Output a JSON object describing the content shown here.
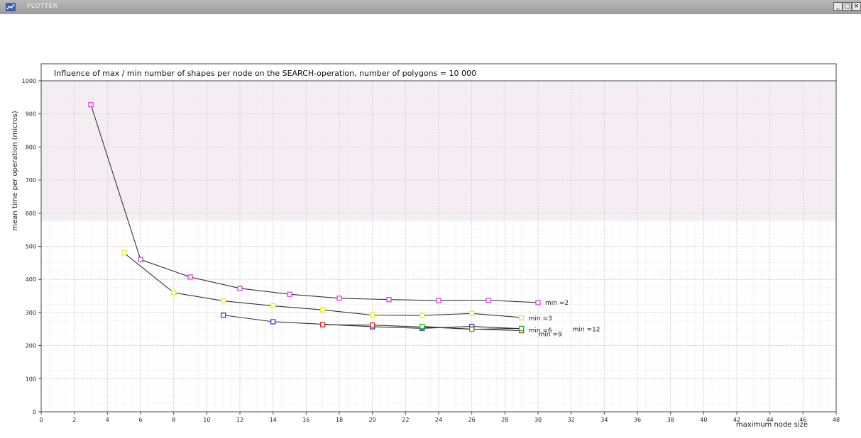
{
  "window": {
    "title": "PLOTTER",
    "minimize_label": "_",
    "maximize_label": "□",
    "close_label": "×"
  },
  "chart_data": {
    "type": "line",
    "title": "Influence of max / min number of shapes per node on the SEARCH-operation, number of polygons = 10 000",
    "xlabel": "maximum node size",
    "ylabel": "mean time per operation  (micros)",
    "xlim": [
      0,
      48
    ],
    "ylim": [
      0,
      1000
    ],
    "x_ticks": [
      0,
      2,
      4,
      6,
      8,
      10,
      12,
      14,
      16,
      18,
      20,
      22,
      24,
      26,
      28,
      30,
      32,
      34,
      36,
      38,
      40,
      42,
      44,
      46,
      48
    ],
    "y_ticks": [
      0,
      100,
      200,
      300,
      400,
      500,
      600,
      700,
      800,
      900,
      1000
    ],
    "grid": true,
    "series": [
      {
        "name": "min =2",
        "color": "#e040e0",
        "x": [
          3,
          6,
          9,
          12,
          15,
          18,
          21,
          24,
          27,
          30
        ],
        "y": [
          928,
          460,
          407,
          373,
          355,
          343,
          339,
          336,
          337,
          330
        ]
      },
      {
        "name": "min =3",
        "color": "#f0f000",
        "x": [
          5,
          8,
          11,
          14,
          17,
          20,
          23,
          26,
          29
        ],
        "y": [
          480,
          360,
          335,
          320,
          308,
          292,
          291,
          297,
          285
        ]
      },
      {
        "name": "min =6",
        "color": "#2040e0",
        "x": [
          11,
          14,
          20,
          23,
          26,
          29
        ],
        "y": [
          292,
          272,
          257,
          252,
          258,
          251
        ]
      },
      {
        "name": "min =9",
        "color": "#e02020",
        "x": [
          17,
          20,
          23,
          26,
          29
        ],
        "y": [
          263,
          262,
          256,
          250,
          245
        ]
      },
      {
        "name": "min =12",
        "color": "#20c020",
        "x": [
          23,
          26,
          29
        ],
        "y": [
          258,
          249,
          252
        ]
      }
    ]
  }
}
